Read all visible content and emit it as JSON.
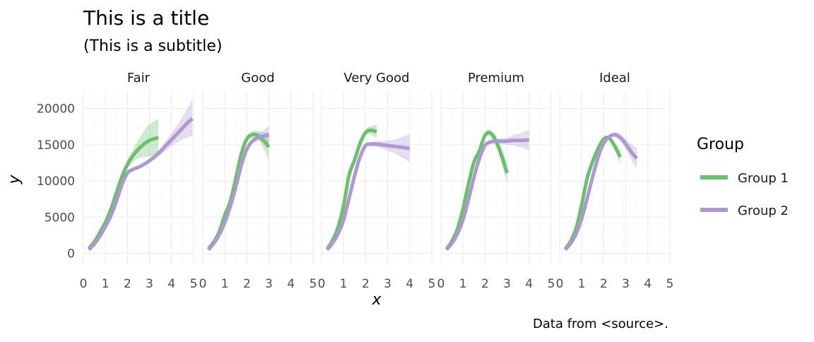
{
  "chart_data": {
    "type": "line",
    "title": "This is a title",
    "subtitle": "(This is a subtitle)",
    "caption": "Data from <source>.",
    "xlabel": "x",
    "ylabel": "y",
    "xlim": [
      0,
      5
    ],
    "ylim": [
      -1500,
      22500
    ],
    "x_ticks": [
      0,
      1,
      2,
      3,
      4,
      5
    ],
    "x_tick_labels": [
      "0",
      "1",
      "2",
      "3",
      "4",
      "5"
    ],
    "y_ticks": [
      0,
      5000,
      10000,
      15000,
      20000
    ],
    "y_tick_labels": [
      "0",
      "5000",
      "10000",
      "15000",
      "20000"
    ],
    "grid": true,
    "legend": {
      "title": "Group",
      "position": "right",
      "entries": [
        {
          "label": "Group 1",
          "color": "#6cbf6c"
        },
        {
          "label": "Group 2",
          "color": "#ad99cf"
        }
      ]
    },
    "colors": {
      "group1": "#6cbf6c",
      "group1_band": "#6cbf6c",
      "group2": "#ad99cf",
      "group2_band": "#ad99cf"
    },
    "facets": [
      {
        "label": "Fair",
        "series": [
          {
            "name": "Group 1",
            "x": [
              0.25,
              0.5,
              0.75,
              1.0,
              1.25,
              1.5,
              1.75,
              2.0,
              2.25,
              2.5,
              2.75,
              3.0,
              3.4
            ],
            "y": [
              700,
              1600,
              2900,
              4300,
              6100,
              8400,
              10600,
              12300,
              13500,
              14400,
              15100,
              15600,
              16000
            ],
            "ymin": [
              400,
              1300,
              2600,
              4000,
              5700,
              8000,
              10200,
              11700,
              12600,
              13100,
              13300,
              13400,
              13400
            ],
            "ymax": [
              1000,
              1900,
              3200,
              4600,
              6500,
              8800,
              11000,
              12900,
              14400,
              15700,
              16900,
              17800,
              18600
            ]
          },
          {
            "name": "Group 2",
            "x": [
              0.25,
              0.5,
              0.75,
              1.0,
              1.25,
              1.5,
              1.75,
              2.0,
              2.25,
              2.5,
              2.75,
              3.0,
              3.25,
              3.5,
              3.75,
              4.0,
              4.25,
              4.5,
              4.75,
              4.95
            ],
            "y": [
              500,
              1300,
              2400,
              3700,
              5200,
              7200,
              9500,
              11100,
              11600,
              11900,
              12300,
              12800,
              13400,
              14100,
              14900,
              15700,
              16500,
              17300,
              18100,
              18600
            ],
            "ymin": [
              300,
              1100,
              2200,
              3500,
              5000,
              7000,
              9300,
              10900,
              11400,
              11700,
              12100,
              12500,
              13000,
              13600,
              14200,
              14800,
              15300,
              15700,
              16000,
              16200
            ],
            "ymax": [
              700,
              1500,
              2600,
              3900,
              5400,
              7400,
              9700,
              11300,
              11800,
              12100,
              12500,
              13100,
              13800,
              14600,
              15600,
              16600,
              17700,
              18900,
              20200,
              21300
            ]
          }
        ]
      },
      {
        "label": "Good",
        "series": [
          {
            "name": "Group 1",
            "x": [
              0.25,
              0.5,
              0.75,
              1.0,
              1.25,
              1.5,
              1.75,
              2.0,
              2.25,
              2.5,
              2.75,
              3.0
            ],
            "y": [
              600,
              1600,
              3000,
              5300,
              7200,
              10400,
              13800,
              15800,
              16400,
              16300,
              15600,
              14700
            ],
            "ymin": [
              400,
              1400,
              2800,
              5100,
              7000,
              10200,
              13500,
              15400,
              15900,
              15700,
              14500,
              12700
            ],
            "ymax": [
              800,
              1800,
              3200,
              5500,
              7400,
              10600,
              14100,
              16200,
              16900,
              16900,
              16700,
              16700
            ]
          },
          {
            "name": "Group 2",
            "x": [
              0.25,
              0.5,
              0.75,
              1.0,
              1.25,
              1.5,
              1.75,
              2.0,
              2.25,
              2.5,
              2.75,
              3.0
            ],
            "y": [
              500,
              1400,
              2600,
              4300,
              6500,
              9200,
              12200,
              14400,
              15500,
              16000,
              16200,
              16400
            ],
            "ymin": [
              300,
              1200,
              2400,
              4100,
              6300,
              9000,
              12000,
              14200,
              15200,
              15500,
              15400,
              15200
            ],
            "ymax": [
              700,
              1600,
              2800,
              4500,
              6700,
              9400,
              12400,
              14600,
              15800,
              16500,
              17000,
              17600
            ]
          }
        ]
      },
      {
        "label": "Very Good",
        "series": [
          {
            "name": "Group 1",
            "x": [
              0.25,
              0.5,
              0.75,
              1.0,
              1.25,
              1.5,
              1.75,
              2.0,
              2.25,
              2.5
            ],
            "y": [
              600,
              1800,
              3600,
              6600,
              10800,
              12900,
              15200,
              16700,
              17000,
              16800
            ],
            "ymin": [
              400,
              1600,
              3400,
              6400,
              10600,
              12700,
              14900,
              16300,
              16400,
              15900
            ],
            "ymax": [
              800,
              2000,
              3800,
              6800,
              11000,
              13100,
              15500,
              17100,
              17600,
              17700
            ]
          },
          {
            "name": "Group 2",
            "x": [
              0.25,
              0.5,
              0.75,
              1.0,
              1.25,
              1.5,
              1.75,
              2.0,
              2.25,
              2.5,
              2.75,
              3.0,
              3.25,
              3.5,
              3.75,
              4.0
            ],
            "y": [
              500,
              1400,
              2700,
              4600,
              7600,
              10700,
              13300,
              14900,
              15100,
              15100,
              15000,
              14900,
              14800,
              14700,
              14600,
              14500
            ],
            "ymin": [
              300,
              1200,
              2500,
              4400,
              7400,
              10500,
              13100,
              14700,
              14800,
              14700,
              14500,
              14200,
              13900,
              13500,
              13100,
              12600
            ],
            "ymax": [
              700,
              1600,
              2900,
              4800,
              7800,
              10900,
              13500,
              15100,
              15400,
              15500,
              15500,
              15600,
              15700,
              15900,
              16200,
              16500
            ]
          }
        ]
      },
      {
        "label": "Premium",
        "series": [
          {
            "name": "Group 1",
            "x": [
              0.25,
              0.5,
              0.75,
              1.0,
              1.25,
              1.5,
              1.75,
              2.0,
              2.25,
              2.5,
              2.75,
              3.0
            ],
            "y": [
              600,
              1700,
              3400,
              6100,
              9600,
              12600,
              14200,
              16300,
              16600,
              15500,
              13500,
              11100
            ],
            "ymin": [
              400,
              1500,
              3200,
              5900,
              9400,
              12400,
              13900,
              15900,
              16100,
              14800,
              12500,
              9800
            ],
            "ymax": [
              800,
              1900,
              3600,
              6300,
              9800,
              12800,
              14500,
              16700,
              17100,
              16200,
              14500,
              12400
            ]
          },
          {
            "name": "Group 2",
            "x": [
              0.25,
              0.5,
              0.75,
              1.0,
              1.25,
              1.5,
              1.75,
              2.0,
              2.25,
              2.5,
              2.75,
              3.0,
              3.25,
              3.5,
              3.75,
              4.0
            ],
            "y": [
              500,
              1400,
              2700,
              4600,
              7400,
              10500,
              13100,
              14900,
              15400,
              15500,
              15500,
              15500,
              15600,
              15600,
              15600,
              15700
            ],
            "ymin": [
              300,
              1200,
              2500,
              4400,
              7200,
              10300,
              12900,
              14700,
              15100,
              15200,
              15100,
              15000,
              14900,
              14700,
              14500,
              14200
            ],
            "ymax": [
              700,
              1600,
              2900,
              4800,
              7600,
              10700,
              13300,
              15100,
              15700,
              15800,
              15900,
              16000,
              16300,
              16500,
              16800,
              17100
            ]
          }
        ]
      },
      {
        "label": "Ideal",
        "series": [
          {
            "name": "Group 1",
            "x": [
              0.25,
              0.5,
              0.75,
              1.0,
              1.25,
              1.5,
              1.75,
              2.0,
              2.25,
              2.5,
              2.75
            ],
            "y": [
              600,
              1700,
              3500,
              6700,
              10400,
              12700,
              14500,
              15800,
              15900,
              14800,
              13300
            ],
            "ymin": [
              400,
              1500,
              3300,
              6500,
              10200,
              12500,
              14300,
              15600,
              15600,
              14300,
              12300
            ],
            "ymax": [
              800,
              1900,
              3700,
              6900,
              10600,
              12900,
              14700,
              16000,
              16200,
              15300,
              14300
            ]
          },
          {
            "name": "Group 2",
            "x": [
              0.25,
              0.5,
              0.75,
              1.0,
              1.25,
              1.5,
              1.75,
              2.0,
              2.25,
              2.5,
              2.75,
              3.0,
              3.25,
              3.5
            ],
            "y": [
              500,
              1400,
              2700,
              4800,
              7600,
              10600,
              13300,
              15200,
              16100,
              16400,
              16000,
              15100,
              14000,
              13100
            ],
            "ymin": [
              300,
              1200,
              2500,
              4600,
              7400,
              10400,
              13100,
              15000,
              15900,
              16100,
              15500,
              14400,
              12900,
              11700
            ],
            "ymax": [
              700,
              1600,
              2900,
              5000,
              7800,
              10800,
              13500,
              15400,
              16300,
              16700,
              16500,
              15800,
              15100,
              14500
            ]
          }
        ]
      }
    ]
  }
}
